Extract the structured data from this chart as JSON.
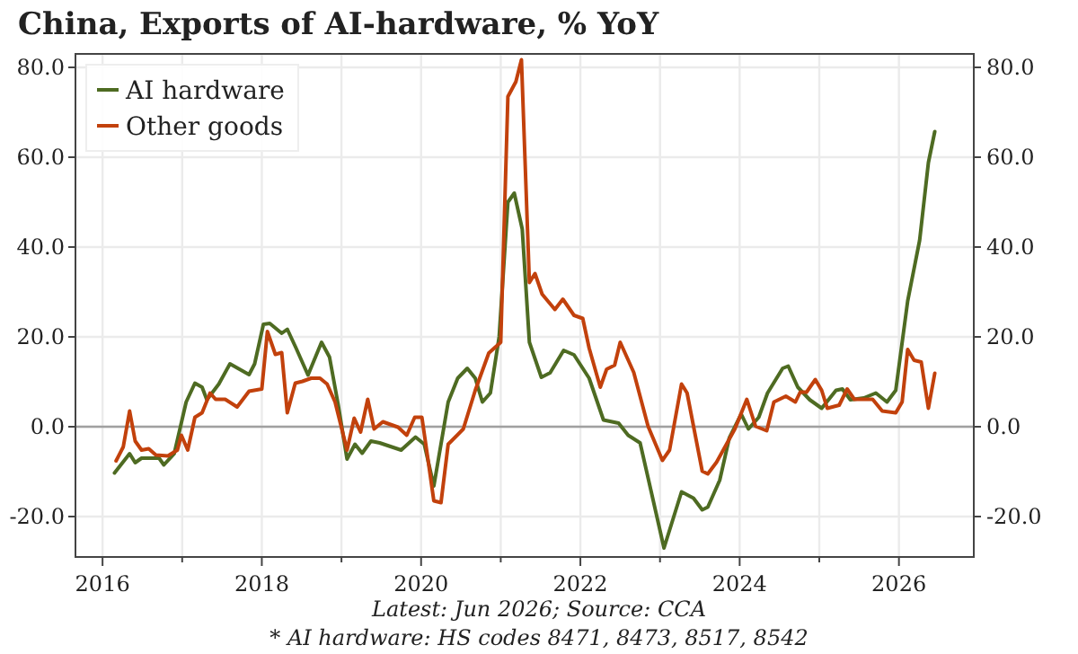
{
  "chart_data": {
    "type": "line",
    "title": "China, Exports of AI-hardware, % YoY",
    "xlim": [
      2015.66,
      2026.94
    ],
    "xticks": [
      2016,
      {
        "value": 2017,
        "label": null
      },
      2018,
      {
        "value": 2019,
        "label": null
      },
      2020,
      {
        "value": 2021,
        "label": null
      },
      2022,
      {
        "value": 2023,
        "label": null
      },
      2024,
      {
        "value": 2025,
        "label": null
      },
      2026
    ],
    "ylim": [
      -29,
      83
    ],
    "yticks": [
      {
        "value": -20,
        "label": "-20.0"
      },
      {
        "value": 0,
        "label": "0.0"
      },
      {
        "value": 20,
        "label": "20.0"
      },
      {
        "value": 40,
        "label": "40.0"
      },
      {
        "value": 60,
        "label": "60.0"
      },
      {
        "value": 80,
        "label": "80.0"
      }
    ],
    "y2lim": [
      -29,
      83
    ],
    "y2ticks": [
      {
        "value": -20,
        "label": "-20.0"
      },
      {
        "value": 0,
        "label": "0.0"
      },
      {
        "value": 20,
        "label": "20.0"
      },
      {
        "value": 40,
        "label": "40.0"
      },
      {
        "value": 60,
        "label": "60.0"
      },
      {
        "value": 80,
        "label": "80.0"
      }
    ],
    "grid": true,
    "legend": "top left",
    "marker": "none",
    "line_style": "solid",
    "ref_lines": [
      {
        "axis": "y",
        "value": 0,
        "color": "#a0a0a0"
      }
    ],
    "series": [
      {
        "name": "AI hardware",
        "color": "#4e6b22",
        "x": [
          2016.15,
          2016.34,
          2016.41,
          2016.49,
          2016.71,
          2016.77,
          2016.9,
          2017.05,
          2017.16,
          2017.25,
          2017.31,
          2017.46,
          2017.6,
          2017.7,
          2017.84,
          2017.91,
          2018.02,
          2018.1,
          2018.25,
          2018.32,
          2018.43,
          2018.58,
          2018.75,
          2018.85,
          2018.96,
          2019.07,
          2019.17,
          2019.26,
          2019.37,
          2019.48,
          2019.75,
          2019.93,
          2020.04,
          2020.16,
          2020.34,
          2020.46,
          2020.58,
          2020.68,
          2020.77,
          2020.87,
          2020.98,
          2021.09,
          2021.17,
          2021.27,
          2021.36,
          2021.51,
          2021.62,
          2021.79,
          2021.92,
          2022.11,
          2022.29,
          2022.48,
          2022.6,
          2022.75,
          2022.89,
          2023.05,
          2023.27,
          2023.42,
          2023.53,
          2023.6,
          2023.75,
          2023.87,
          2024.02,
          2024.11,
          2024.24,
          2024.35,
          2024.54,
          2024.61,
          2024.73,
          2024.88,
          2025.03,
          2025.21,
          2025.29,
          2025.39,
          2025.56,
          2025.71,
          2025.85,
          2025.96,
          2026.11,
          2026.26,
          2026.37,
          2026.45
        ],
        "values": [
          -10.3,
          -6,
          -8,
          -7,
          -7,
          -8.5,
          -6,
          5.5,
          9.7,
          8.8,
          6,
          9.5,
          14,
          13,
          11.6,
          14,
          22.8,
          23,
          20.8,
          21.7,
          17.5,
          11.5,
          18.8,
          15.5,
          4.8,
          -7.2,
          -3.9,
          -5.9,
          -3.2,
          -3.6,
          -5.2,
          -2.3,
          -3.9,
          -13.2,
          5.5,
          10.8,
          13,
          10.8,
          5.5,
          7.5,
          20,
          50,
          52,
          44,
          18.8,
          11,
          12,
          17,
          16,
          10.8,
          1.5,
          0.8,
          -1.9,
          -3.6,
          -14.5,
          -27,
          -14.5,
          -15.9,
          -18.5,
          -17.9,
          -11.9,
          -2.5,
          2.8,
          -0.5,
          2.1,
          7.5,
          13,
          13.5,
          8.8,
          6,
          4.1,
          8.1,
          8.4,
          6,
          6.4,
          7.5,
          5.5,
          8.1,
          28,
          41.5,
          58.8,
          65.7
        ]
      },
      {
        "name": "Other goods",
        "color": "#c2410c",
        "x": [
          2016.17,
          2016.26,
          2016.34,
          2016.41,
          2016.49,
          2016.58,
          2016.67,
          2016.82,
          2016.94,
          2016.99,
          2017.07,
          2017.16,
          2017.25,
          2017.35,
          2017.42,
          2017.54,
          2017.69,
          2017.84,
          2018.0,
          2018.07,
          2018.17,
          2018.25,
          2018.32,
          2018.42,
          2018.51,
          2018.62,
          2018.73,
          2018.82,
          2018.92,
          2019.07,
          2019.16,
          2019.24,
          2019.33,
          2019.41,
          2019.52,
          2019.71,
          2019.82,
          2019.92,
          2020.01,
          2020.08,
          2020.16,
          2020.25,
          2020.34,
          2020.53,
          2020.68,
          2020.85,
          2021.0,
          2021.09,
          2021.19,
          2021.26,
          2021.36,
          2021.43,
          2021.52,
          2021.68,
          2021.78,
          2021.92,
          2022.03,
          2022.11,
          2022.25,
          2022.33,
          2022.43,
          2022.5,
          2022.67,
          2022.85,
          2023.03,
          2023.12,
          2023.27,
          2023.34,
          2023.53,
          2023.6,
          2023.71,
          2023.94,
          2024.09,
          2024.2,
          2024.34,
          2024.43,
          2024.58,
          2024.7,
          2024.76,
          2024.84,
          2024.95,
          2025.03,
          2025.1,
          2025.25,
          2025.35,
          2025.44,
          2025.67,
          2025.79,
          2025.96,
          2026.04,
          2026.11,
          2026.19,
          2026.28,
          2026.37,
          2026.45
        ],
        "values": [
          -7.6,
          -4.5,
          3.5,
          -3.2,
          -5.2,
          -4.9,
          -6.3,
          -6.5,
          -5.2,
          -1.9,
          -5.2,
          2.1,
          3.1,
          7.5,
          6.1,
          6.1,
          4.4,
          7.9,
          8.4,
          21.2,
          16.1,
          16.5,
          3.1,
          9.7,
          10.1,
          10.8,
          10.8,
          9.5,
          5.5,
          -5.2,
          1.9,
          -1.2,
          6.1,
          -0.5,
          1.1,
          -0.1,
          -1.9,
          2.1,
          2.1,
          -6.5,
          -16.5,
          -16.9,
          -3.9,
          -0.5,
          8.1,
          16.4,
          18.8,
          73.5,
          76.8,
          81.7,
          32.1,
          34.1,
          29.5,
          26.1,
          28.4,
          24.8,
          24.1,
          17.5,
          8.8,
          12.8,
          13.7,
          18.8,
          12.1,
          0.1,
          -7.5,
          -5.2,
          9.5,
          7.5,
          -9.9,
          -10.5,
          -7.9,
          -0.5,
          6.1,
          0.1,
          -0.9,
          5.5,
          6.8,
          5.5,
          7.7,
          7.7,
          10.5,
          8.1,
          4.1,
          4.8,
          8.4,
          6.1,
          6.1,
          3.5,
          3.1,
          5.5,
          17.2,
          14.8,
          14.4,
          4.1,
          11.9
        ]
      }
    ],
    "annotations": [
      "Latest: Jun 2026; Source: CCA",
      "* AI hardware: HS codes 8471, 8473, 8517, 8542"
    ]
  }
}
